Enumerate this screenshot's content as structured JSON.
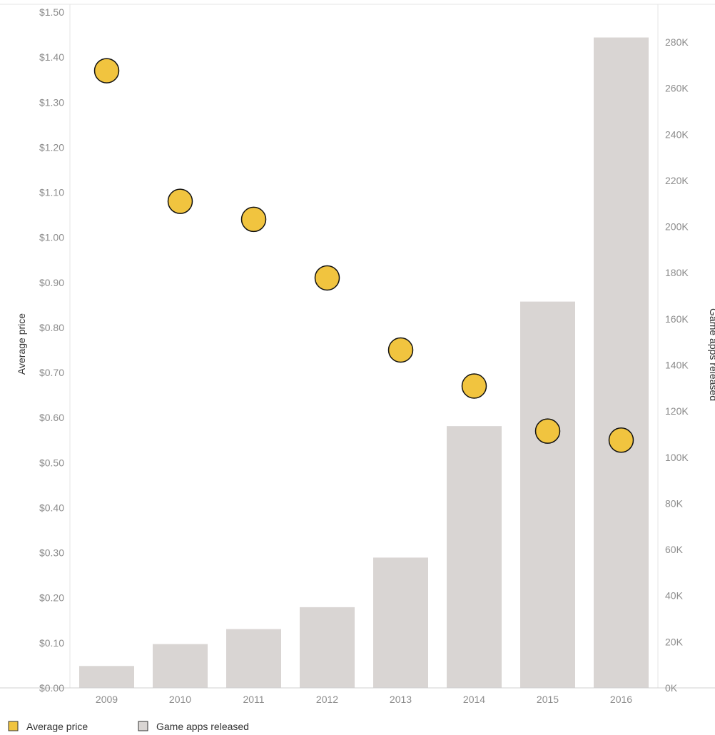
{
  "chart_data": {
    "type": "bar",
    "categories": [
      "2009",
      "2010",
      "2011",
      "2012",
      "2013",
      "2014",
      "2015",
      "2016"
    ],
    "series": [
      {
        "name": "Game apps released",
        "type": "bar",
        "axis": "right",
        "color": "#d9d5d3",
        "values": [
          9500,
          19000,
          25500,
          35000,
          56500,
          113500,
          167500,
          282000
        ]
      },
      {
        "name": "Average price",
        "type": "scatter",
        "axis": "left",
        "color": "#f1c43f",
        "values": [
          1.37,
          1.08,
          1.04,
          0.91,
          0.75,
          0.67,
          0.57,
          0.55
        ]
      }
    ],
    "left_axis": {
      "label": "Average price",
      "ylim": [
        0,
        1.5
      ],
      "ticks": [
        "$0.00",
        "$0.10",
        "$0.20",
        "$0.30",
        "$0.40",
        "$0.50",
        "$0.60",
        "$0.70",
        "$0.80",
        "$0.90",
        "$1.00",
        "$1.10",
        "$1.20",
        "$1.30",
        "$1.40",
        "$1.50"
      ]
    },
    "right_axis": {
      "label": "Game apps released",
      "ylim": [
        0,
        292000
      ],
      "ticks": [
        "0K",
        "20K",
        "40K",
        "60K",
        "80K",
        "100K",
        "120K",
        "140K",
        "160K",
        "180K",
        "200K",
        "220K",
        "240K",
        "260K",
        "280K"
      ]
    },
    "legend": {
      "position": "bottom-left",
      "items": [
        {
          "label": "Average price",
          "color": "#f1c43f"
        },
        {
          "label": "Game apps released",
          "color": "#d9d5d3"
        }
      ]
    },
    "grid": false
  }
}
